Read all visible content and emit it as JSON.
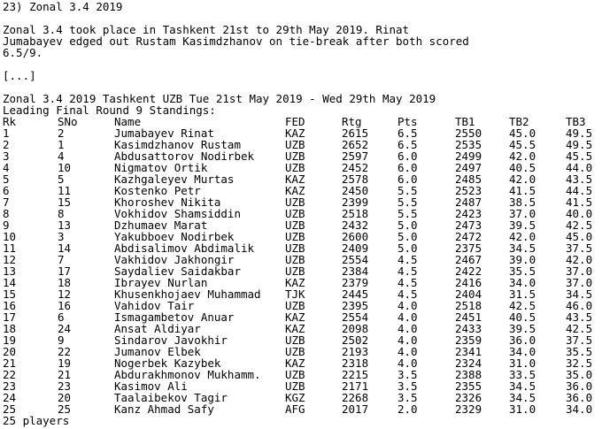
{
  "heading": "23) Zonal 3.4 2019",
  "intro_lines": [
    "Zonal 3.4 took place in Tashkent 21st to 29th May 2019. Rinat",
    "Jumabayev edged out Rustam Kasimdzhanov on tie-break after both scored",
    "6.5/9."
  ],
  "ellipsis": "[...]",
  "event_line": "Zonal 3.4 2019 Tashkent UZB Tue 21st May 2019 - Wed 29th May 2019",
  "subtitle": "Leading Final Round 9 Standings:",
  "columns": {
    "rk": "Rk",
    "sno": "SNo",
    "name": "Name",
    "fed": "FED",
    "rtg": "Rtg",
    "pts": "Pts",
    "tb1": "TB1",
    "tb2": "TB2",
    "tb3": "TB3"
  },
  "rows": [
    {
      "rk": "1",
      "sno": "2",
      "name": "Jumabayev Rinat",
      "fed": "KAZ",
      "rtg": "2615",
      "pts": "6.5",
      "tb1": "2550",
      "tb2": "45.0",
      "tb3": "49.5"
    },
    {
      "rk": "2",
      "sno": "1",
      "name": "Kasimdzhanov Rustam",
      "fed": "UZB",
      "rtg": "2652",
      "pts": "6.5",
      "tb1": "2535",
      "tb2": "45.5",
      "tb3": "49.5"
    },
    {
      "rk": "3",
      "sno": "4",
      "name": "Abdusattorov Nodirbek",
      "fed": "UZB",
      "rtg": "2597",
      "pts": "6.0",
      "tb1": "2499",
      "tb2": "42.0",
      "tb3": "45.5"
    },
    {
      "rk": "4",
      "sno": "10",
      "name": "Nigmatov Ortik",
      "fed": "UZB",
      "rtg": "2452",
      "pts": "6.0",
      "tb1": "2497",
      "tb2": "40.5",
      "tb3": "44.0"
    },
    {
      "rk": "5",
      "sno": "5",
      "name": "Kazhgaleyev Murtas",
      "fed": "KAZ",
      "rtg": "2578",
      "pts": "6.0",
      "tb1": "2485",
      "tb2": "42.0",
      "tb3": "43.5"
    },
    {
      "rk": "6",
      "sno": "11",
      "name": "Kostenko Petr",
      "fed": "KAZ",
      "rtg": "2450",
      "pts": "5.5",
      "tb1": "2523",
      "tb2": "41.5",
      "tb3": "44.5"
    },
    {
      "rk": "7",
      "sno": "15",
      "name": "Khoroshev Nikita",
      "fed": "UZB",
      "rtg": "2399",
      "pts": "5.5",
      "tb1": "2487",
      "tb2": "38.5",
      "tb3": "41.5"
    },
    {
      "rk": "8",
      "sno": "8",
      "name": "Vokhidov Shamsiddin",
      "fed": "UZB",
      "rtg": "2518",
      "pts": "5.5",
      "tb1": "2423",
      "tb2": "37.0",
      "tb3": "40.0"
    },
    {
      "rk": "9",
      "sno": "13",
      "name": "Dzhumaev Marat",
      "fed": "UZB",
      "rtg": "2432",
      "pts": "5.0",
      "tb1": "2473",
      "tb2": "39.5",
      "tb3": "42.5"
    },
    {
      "rk": "10",
      "sno": "3",
      "name": "Yakubboev Nodirbek",
      "fed": "UZB",
      "rtg": "2600",
      "pts": "5.0",
      "tb1": "2472",
      "tb2": "42.0",
      "tb3": "45.0"
    },
    {
      "rk": "11",
      "sno": "14",
      "name": "Abdisalimov Abdimalik",
      "fed": "UZB",
      "rtg": "2409",
      "pts": "5.0",
      "tb1": "2375",
      "tb2": "34.5",
      "tb3": "37.5"
    },
    {
      "rk": "12",
      "sno": "7",
      "name": "Vakhidov Jakhongir",
      "fed": "UZB",
      "rtg": "2554",
      "pts": "4.5",
      "tb1": "2467",
      "tb2": "39.0",
      "tb3": "42.0"
    },
    {
      "rk": "13",
      "sno": "17",
      "name": "Saydaliev Saidakbar",
      "fed": "UZB",
      "rtg": "2384",
      "pts": "4.5",
      "tb1": "2422",
      "tb2": "35.5",
      "tb3": "37.0"
    },
    {
      "rk": "14",
      "sno": "18",
      "name": "Ibrayev Nurlan",
      "fed": "KAZ",
      "rtg": "2379",
      "pts": "4.5",
      "tb1": "2416",
      "tb2": "34.0",
      "tb3": "37.0"
    },
    {
      "rk": "15",
      "sno": "12",
      "name": "Khusenkhojaev Muhammad",
      "fed": "TJK",
      "rtg": "2445",
      "pts": "4.5",
      "tb1": "2404",
      "tb2": "31.5",
      "tb3": "34.5"
    },
    {
      "rk": "16",
      "sno": "16",
      "name": "Vahidov Tair",
      "fed": "UZB",
      "rtg": "2395",
      "pts": "4.0",
      "tb1": "2518",
      "tb2": "42.5",
      "tb3": "46.0"
    },
    {
      "rk": "17",
      "sno": "6",
      "name": "Ismagambetov Anuar",
      "fed": "KAZ",
      "rtg": "2554",
      "pts": "4.0",
      "tb1": "2451",
      "tb2": "40.5",
      "tb3": "43.5"
    },
    {
      "rk": "18",
      "sno": "24",
      "name": "Ansat Aldiyar",
      "fed": "KAZ",
      "rtg": "2098",
      "pts": "4.0",
      "tb1": "2433",
      "tb2": "39.5",
      "tb3": "42.5"
    },
    {
      "rk": "19",
      "sno": "9",
      "name": "Sindarov Javokhir",
      "fed": "UZB",
      "rtg": "2502",
      "pts": "4.0",
      "tb1": "2359",
      "tb2": "36.0",
      "tb3": "37.5"
    },
    {
      "rk": "20",
      "sno": "22",
      "name": "Jumanov Elbek",
      "fed": "UZB",
      "rtg": "2193",
      "pts": "4.0",
      "tb1": "2341",
      "tb2": "34.0",
      "tb3": "35.5"
    },
    {
      "rk": "21",
      "sno": "19",
      "name": "Nogerbek Kazybek",
      "fed": "KAZ",
      "rtg": "2318",
      "pts": "4.0",
      "tb1": "2324",
      "tb2": "31.0",
      "tb3": "32.5"
    },
    {
      "rk": "22",
      "sno": "21",
      "name": "Abdurakhmonov Mukhamm.",
      "fed": "UZB",
      "rtg": "2215",
      "pts": "3.5",
      "tb1": "2388",
      "tb2": "33.5",
      "tb3": "35.0"
    },
    {
      "rk": "23",
      "sno": "23",
      "name": "Kasimov Ali",
      "fed": "UZB",
      "rtg": "2171",
      "pts": "3.5",
      "tb1": "2355",
      "tb2": "34.5",
      "tb3": "36.0"
    },
    {
      "rk": "24",
      "sno": "20",
      "name": "Taalaibekov Tagir",
      "fed": "KGZ",
      "rtg": "2268",
      "pts": "3.5",
      "tb1": "2326",
      "tb2": "34.5",
      "tb3": "36.0"
    },
    {
      "rk": "25",
      "sno": "25",
      "name": "Kanz Ahmad Safy",
      "fed": "AFG",
      "rtg": "2017",
      "pts": "2.0",
      "tb1": "2329",
      "tb2": "31.0",
      "tb3": "34.0"
    }
  ],
  "footer": "25 players"
}
